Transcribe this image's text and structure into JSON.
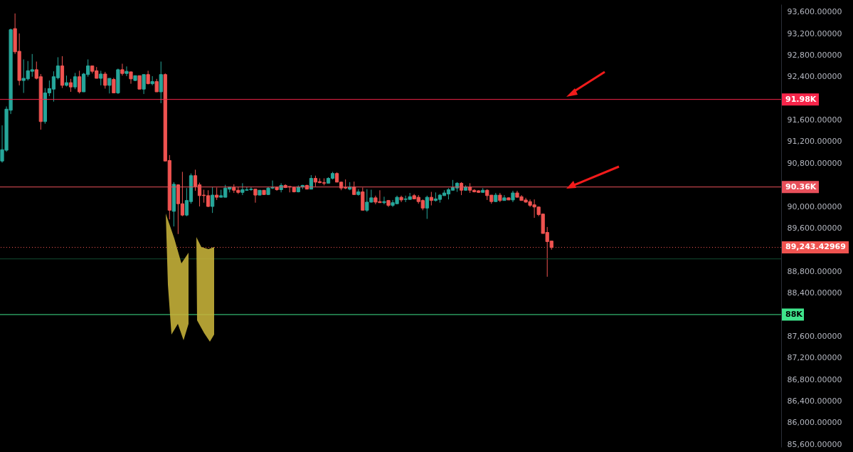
{
  "chart_data": {
    "type": "candlestick",
    "tick_labels": "y",
    "grid": false,
    "categories": [
      null,
      null,
      null,
      null,
      null,
      null,
      null,
      null,
      null,
      null,
      null,
      null,
      null,
      null,
      null,
      null,
      null,
      null,
      null,
      null,
      null,
      null,
      null,
      null,
      null,
      null,
      null,
      null,
      null,
      null,
      null,
      null,
      null,
      null,
      null,
      null,
      null,
      null,
      null,
      null,
      null,
      null,
      null,
      null,
      null,
      null,
      null,
      null,
      null,
      null,
      null,
      null,
      null,
      null,
      null,
      null,
      null,
      null,
      null,
      null,
      null,
      null,
      null,
      null,
      null,
      null,
      null,
      null,
      null,
      null,
      null,
      null,
      null,
      null,
      null,
      null,
      null,
      null,
      null,
      null,
      null,
      null,
      null,
      null,
      null,
      null,
      null,
      null,
      null,
      null,
      null,
      null,
      null,
      null,
      null,
      null,
      null,
      null,
      null,
      null,
      null,
      null,
      null,
      null,
      null,
      null,
      null,
      null,
      null,
      null,
      null,
      null,
      null,
      null,
      null,
      null,
      null,
      null,
      null,
      null,
      null,
      null,
      null,
      null,
      null,
      null,
      null,
      null,
      null,
      null,
      null,
      null,
      null,
      null,
      null,
      null,
      null,
      null,
      null,
      null,
      null,
      null,
      null,
      null,
      null,
      null,
      null,
      null,
      null,
      null,
      null,
      null,
      null,
      null,
      null,
      null,
      null,
      null,
      null,
      null,
      null,
      null,
      null,
      null,
      null,
      null,
      null,
      null,
      null,
      null,
      null,
      null,
      null,
      null,
      null,
      null,
      null,
      null,
      null,
      null,
      null,
      null
    ],
    "ohlc": [
      [
        90840,
        91500,
        90810,
        91050
      ],
      [
        91040,
        91850,
        91010,
        91800
      ],
      [
        91780,
        93290,
        91710,
        93270
      ],
      [
        93290,
        93570,
        92820,
        92860
      ],
      [
        92870,
        93200,
        92240,
        92330
      ],
      [
        92330,
        92720,
        92100,
        92370
      ],
      [
        92360,
        92690,
        92330,
        92510
      ],
      [
        92500,
        92820,
        92400,
        92530
      ],
      [
        92530,
        92680,
        92350,
        92370
      ],
      [
        92400,
        92450,
        91420,
        91570
      ],
      [
        91570,
        92190,
        91530,
        92100
      ],
      [
        92100,
        92330,
        92040,
        92180
      ],
      [
        92170,
        92500,
        91940,
        92400
      ],
      [
        92380,
        92760,
        92350,
        92600
      ],
      [
        92600,
        92780,
        92190,
        92240
      ],
      [
        92240,
        92420,
        92220,
        92290
      ],
      [
        92290,
        92360,
        92120,
        92210
      ],
      [
        92210,
        92470,
        92170,
        92400
      ],
      [
        92400,
        92510,
        92090,
        92120
      ],
      [
        92120,
        92470,
        92120,
        92450
      ],
      [
        92440,
        92720,
        92400,
        92600
      ],
      [
        92600,
        92600,
        92460,
        92500
      ],
      [
        92510,
        92580,
        92370,
        92370
      ],
      [
        92370,
        92510,
        92240,
        92450
      ],
      [
        92450,
        92490,
        92180,
        92240
      ],
      [
        92240,
        92370,
        92090,
        92370
      ],
      [
        92350,
        92380,
        92100,
        92100
      ],
      [
        92100,
        92550,
        92080,
        92530
      ],
      [
        92530,
        92640,
        92420,
        92460
      ],
      [
        92460,
        92590,
        92410,
        92500
      ],
      [
        92490,
        92490,
        92270,
        92360
      ],
      [
        92330,
        92420,
        92320,
        92420
      ],
      [
        92420,
        92420,
        92170,
        92170
      ],
      [
        92170,
        92440,
        92080,
        92440
      ],
      [
        92440,
        92510,
        92260,
        92270
      ],
      [
        92270,
        92410,
        92240,
        92310
      ],
      [
        92310,
        92360,
        92120,
        92120
      ],
      [
        92120,
        92680,
        91910,
        92440
      ],
      [
        92440,
        92460,
        90840,
        90840
      ],
      [
        90850,
        90950,
        89760,
        89930
      ],
      [
        89910,
        90450,
        89630,
        90410
      ],
      [
        90400,
        90410,
        89490,
        90050
      ],
      [
        90050,
        90640,
        89820,
        89840
      ],
      [
        89840,
        90340,
        89820,
        90110
      ],
      [
        90090,
        90610,
        90050,
        90570
      ],
      [
        90570,
        90680,
        90290,
        90370
      ],
      [
        90400,
        90440,
        90000,
        90200
      ],
      [
        90210,
        90310,
        90070,
        90200
      ],
      [
        90200,
        90300,
        89990,
        90000
      ],
      [
        90000,
        90360,
        89880,
        90210
      ],
      [
        90210,
        90350,
        90120,
        90170
      ],
      [
        90170,
        90310,
        90170,
        90200
      ],
      [
        90170,
        90400,
        90170,
        90340
      ],
      [
        90320,
        90360,
        90260,
        90360
      ],
      [
        90350,
        90410,
        90250,
        90300
      ],
      [
        90300,
        90360,
        90230,
        90260
      ],
      [
        90260,
        90430,
        90210,
        90310
      ],
      [
        90300,
        90360,
        90290,
        90310
      ],
      [
        90310,
        90360,
        90290,
        90320
      ],
      [
        90320,
        90320,
        90070,
        90210
      ],
      [
        90210,
        90300,
        90210,
        90300
      ],
      [
        90300,
        90300,
        90220,
        90220
      ],
      [
        90220,
        90360,
        90210,
        90340
      ],
      [
        90340,
        90480,
        90320,
        90350
      ],
      [
        90350,
        90370,
        90290,
        90310
      ],
      [
        90310,
        90430,
        90260,
        90390
      ],
      [
        90390,
        90410,
        90340,
        90350
      ],
      [
        90370,
        90370,
        90260,
        90360
      ],
      [
        90350,
        90370,
        90260,
        90270
      ],
      [
        90270,
        90390,
        90260,
        90360
      ],
      [
        90360,
        90400,
        90320,
        90390
      ],
      [
        90390,
        90400,
        90320,
        90320
      ],
      [
        90320,
        90580,
        90320,
        90520
      ],
      [
        90520,
        90570,
        90370,
        90450
      ],
      [
        90460,
        90520,
        90430,
        90440
      ],
      [
        90440,
        90520,
        90390,
        90430
      ],
      [
        90430,
        90540,
        90430,
        90520
      ],
      [
        90520,
        90640,
        90500,
        90610
      ],
      [
        90610,
        90630,
        90450,
        90450
      ],
      [
        90450,
        90460,
        90300,
        90340
      ],
      [
        90350,
        90500,
        90320,
        90340
      ],
      [
        90320,
        90450,
        90300,
        90360
      ],
      [
        90360,
        90460,
        90220,
        90220
      ],
      [
        90220,
        90320,
        90200,
        90270
      ],
      [
        90270,
        90350,
        89930,
        89930
      ],
      [
        89930,
        90320,
        89900,
        90080
      ],
      [
        90080,
        90310,
        90070,
        90160
      ],
      [
        90160,
        90200,
        90040,
        90080
      ],
      [
        90090,
        90300,
        90070,
        90070
      ],
      [
        90070,
        90180,
        90040,
        90090
      ],
      [
        90110,
        90120,
        89990,
        90020
      ],
      [
        90020,
        90120,
        89990,
        90070
      ],
      [
        90050,
        90200,
        90050,
        90170
      ],
      [
        90170,
        90200,
        90080,
        90120
      ],
      [
        90130,
        90200,
        90080,
        90140
      ],
      [
        90130,
        90250,
        90130,
        90180
      ],
      [
        90200,
        90230,
        90140,
        90140
      ],
      [
        90170,
        90210,
        90050,
        90090
      ],
      [
        90110,
        90130,
        89930,
        89970
      ],
      [
        89970,
        90200,
        89770,
        90170
      ],
      [
        90170,
        90270,
        90020,
        90110
      ],
      [
        90110,
        90260,
        90090,
        90140
      ],
      [
        90130,
        90230,
        90070,
        90210
      ],
      [
        90200,
        90300,
        90200,
        90250
      ],
      [
        90230,
        90340,
        90130,
        90310
      ],
      [
        90300,
        90490,
        90300,
        90350
      ],
      [
        90340,
        90450,
        90270,
        90430
      ],
      [
        90430,
        90450,
        90210,
        90300
      ],
      [
        90300,
        90390,
        90290,
        90360
      ],
      [
        90360,
        90430,
        90250,
        90300
      ],
      [
        90300,
        90320,
        90260,
        90270
      ],
      [
        90290,
        90300,
        90250,
        90260
      ],
      [
        90260,
        90340,
        90260,
        90300
      ],
      [
        90300,
        90320,
        90120,
        90200
      ],
      [
        90210,
        90210,
        90050,
        90090
      ],
      [
        90090,
        90250,
        90080,
        90210
      ],
      [
        90210,
        90250,
        90080,
        90110
      ],
      [
        90110,
        90210,
        90110,
        90160
      ],
      [
        90160,
        90170,
        90120,
        90120
      ],
      [
        90120,
        90290,
        90080,
        90250
      ],
      [
        90250,
        90290,
        90170,
        90170
      ],
      [
        90180,
        90210,
        90110,
        90110
      ],
      [
        90120,
        90160,
        90070,
        90080
      ],
      [
        90090,
        90130,
        89990,
        90020
      ],
      [
        90030,
        90130,
        89790,
        89990
      ],
      [
        89990,
        90000,
        89820,
        89850
      ],
      [
        89860,
        89860,
        89500,
        89500
      ],
      [
        89520,
        89620,
        88700,
        89350
      ],
      [
        89360,
        89360,
        89200,
        89240
      ],
      null,
      null,
      null,
      null,
      null,
      null,
      null,
      null,
      null,
      null,
      null,
      null,
      null,
      null,
      null,
      null,
      null,
      null,
      null,
      null,
      null,
      null,
      null,
      null,
      null,
      null,
      null,
      null,
      null,
      null,
      null,
      null,
      null,
      null,
      null,
      null,
      null,
      null,
      null,
      null,
      null,
      null,
      null,
      null,
      null,
      null,
      null,
      null,
      null,
      null,
      null,
      null,
      null
    ],
    "colors": [
      "#26a69a",
      "#26a69a",
      "#26a69a",
      "#ef5350",
      "#ef5350",
      "#26a69a",
      "#26a69a",
      "#26a69a",
      "#ef5350",
      "#ef5350",
      "#26a69a",
      "#26a69a",
      "#26a69a",
      "#26a69a",
      "#ef5350",
      "#26a69a",
      "#ef5350",
      "#26a69a",
      "#ef5350",
      "#26a69a",
      "#26a69a",
      "#ef5350",
      "#ef5350",
      "#26a69a",
      "#ef5350",
      "#26a69a",
      "#ef5350",
      "#26a69a",
      "#ef5350",
      "#26a69a",
      "#ef5350",
      "#26a69a",
      "#ef5350",
      "#26a69a",
      "#ef5350",
      "#26a69a",
      "#ef5350",
      "#26a69a",
      "#ef5350",
      "#ef5350",
      "#26a69a",
      "#ef5350",
      "#ef5350",
      "#26a69a",
      "#26a69a",
      "#ef5350",
      "#ef5350",
      "#ef5350",
      "#ef5350",
      "#26a69a",
      "#ef5350",
      "#26a69a",
      "#26a69a",
      "#26a69a",
      "#ef5350",
      "#ef5350",
      "#26a69a",
      "#26a69a",
      "#26a69a",
      "#ef5350",
      "#26a69a",
      "#ef5350",
      "#26a69a",
      "#26a69a",
      "#ef5350",
      "#26a69a",
      "#ef5350",
      "#ef5350",
      "#ef5350",
      "#26a69a",
      "#26a69a",
      "#ef5350",
      "#26a69a",
      "#ef5350",
      "#ef5350",
      "#ef5350",
      "#26a69a",
      "#26a69a",
      "#ef5350",
      "#ef5350",
      "#ef5350",
      "#26a69a",
      "#ef5350",
      "#26a69a",
      "#ef5350",
      "#26a69a",
      "#26a69a",
      "#ef5350",
      "#ef5350",
      "#26a69a",
      "#ef5350",
      "#26a69a",
      "#26a69a",
      "#ef5350",
      "#26a69a",
      "#26a69a",
      "#ef5350",
      "#ef5350",
      "#ef5350",
      "#26a69a",
      "#ef5350",
      "#26a69a",
      "#26a69a",
      "#26a69a",
      "#26a69a",
      "#26a69a",
      "#26a69a",
      "#ef5350",
      "#26a69a",
      "#ef5350",
      "#ef5350",
      "#ef5350",
      "#26a69a",
      "#ef5350",
      "#ef5350",
      "#26a69a",
      "#ef5350",
      "#26a69a",
      "#ef5350",
      "#26a69a",
      "#ef5350",
      "#ef5350",
      "#ef5350",
      "#ef5350",
      "#ef5350",
      "#ef5350",
      "#ef5350",
      "#ef5350",
      "#ef5350",
      null,
      null,
      null,
      null,
      null,
      null,
      null,
      null,
      null,
      null,
      null,
      null,
      null,
      null,
      null,
      null,
      null,
      null,
      null,
      null,
      null,
      null,
      null,
      null,
      null,
      null,
      null,
      null,
      null,
      null,
      null,
      null,
      null,
      null,
      null,
      null,
      null,
      null,
      null,
      null,
      null,
      null,
      null,
      null,
      null,
      null,
      null,
      null,
      null,
      null,
      null,
      null,
      null
    ],
    "ylim": [
      85550,
      93740
    ],
    "yticks": [
      {
        "value": 85600,
        "label": "85,600.00000"
      },
      {
        "value": 86000,
        "label": "86,000.00000"
      },
      {
        "value": 86400,
        "label": "86,400.00000"
      },
      {
        "value": 86800,
        "label": "86,800.00000"
      },
      {
        "value": 87200,
        "label": "87,200.00000"
      },
      {
        "value": 87600,
        "label": "87,600.00000"
      },
      {
        "value": 88000,
        "label": null
      },
      {
        "value": 88400,
        "label": "88,400.00000"
      },
      {
        "value": 88800,
        "label": "88,800.00000"
      },
      {
        "value": 89600,
        "label": "89,600.00000"
      },
      {
        "value": 90000,
        "label": "90,000.00000"
      },
      {
        "value": 90800,
        "label": "90,800.00000"
      },
      {
        "value": 91200,
        "label": "91,200.00000"
      },
      {
        "value": 91600,
        "label": "91,600.00000"
      },
      {
        "value": 92000,
        "label": null
      },
      {
        "value": 92400,
        "label": "92,400.00000"
      },
      {
        "value": 92800,
        "label": "92,800.00000"
      },
      {
        "value": 93200,
        "label": "93,200.00000"
      },
      {
        "value": 93600,
        "label": "93,600.00000"
      }
    ],
    "ref_lines": [
      {
        "axis": "y",
        "value": 91980,
        "label": "91.98K",
        "color": "#f7254a"
      },
      {
        "axis": "y",
        "value": 90360,
        "label": "90.36K",
        "color": "#e8505b"
      },
      {
        "axis": "y",
        "value": 89243.42969,
        "label": "89,243.42969",
        "color": "#ef5350",
        "line_style": "dotted"
      },
      {
        "axis": "y",
        "value": 88000,
        "label": "88K",
        "color": "#3fe48b"
      },
      {
        "axis": "y",
        "value": 89030,
        "color": "#124d33"
      }
    ]
  }
}
